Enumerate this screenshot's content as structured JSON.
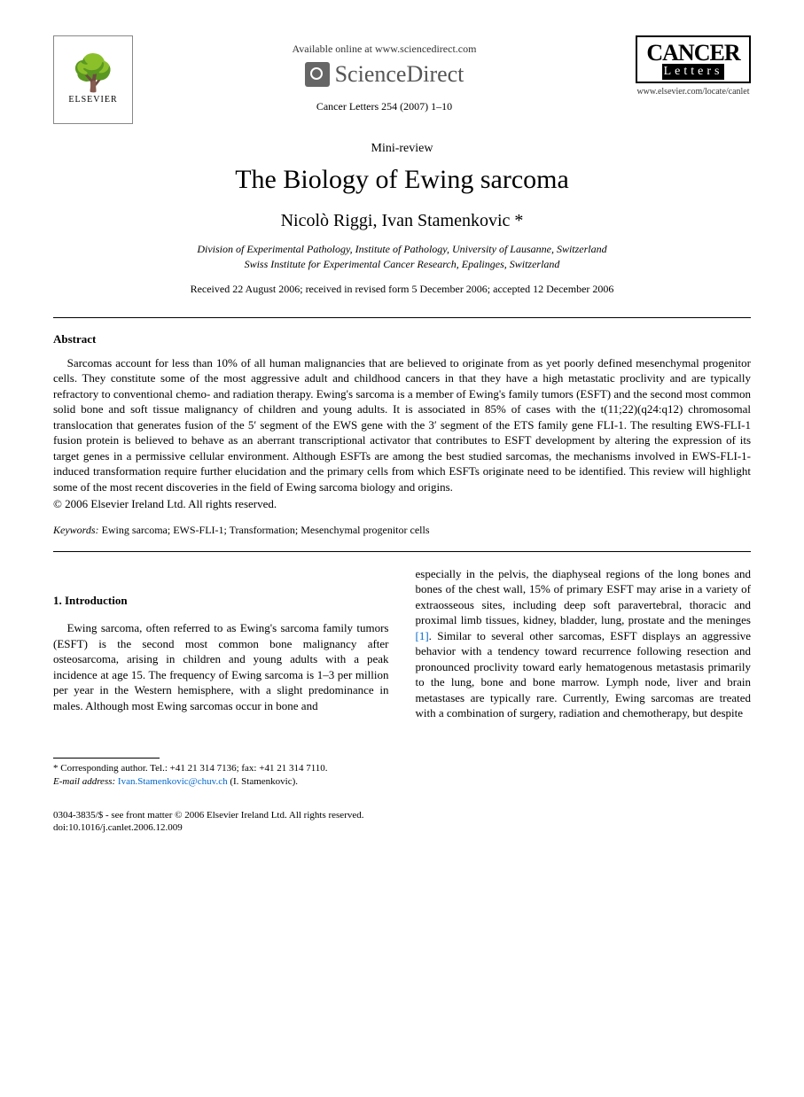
{
  "header": {
    "available_online": "Available online at www.sciencedirect.com",
    "sciencedirect": "ScienceDirect",
    "citation": "Cancer Letters 254 (2007) 1–10",
    "journal_logo_top": "CANCER",
    "journal_logo_bottom": "Letters",
    "journal_url": "www.elsevier.com/locate/canlet",
    "elsevier": "ELSEVIER"
  },
  "article": {
    "type": "Mini-review",
    "title": "The Biology of Ewing sarcoma",
    "authors": "Nicolò Riggi, Ivan Stamenkovic *",
    "affiliation1": "Division of Experimental Pathology, Institute of Pathology, University of Lausanne, Switzerland",
    "affiliation2": "Swiss Institute for Experimental Cancer Research, Epalinges, Switzerland",
    "dates": "Received 22 August 2006; received in revised form 5 December 2006; accepted 12 December 2006"
  },
  "abstract": {
    "heading": "Abstract",
    "body": "Sarcomas account for less than 10% of all human malignancies that are believed to originate from as yet poorly defined mesenchymal progenitor cells. They constitute some of the most aggressive adult and childhood cancers in that they have a high metastatic proclivity and are typically refractory to conventional chemo- and radiation therapy. Ewing's sarcoma is a member of Ewing's family tumors (ESFT) and the second most common solid bone and soft tissue malignancy of children and young adults. It is associated in 85% of cases with the t(11;22)(q24:q12) chromosomal translocation that generates fusion of the 5′ segment of the EWS gene with the 3′ segment of the ETS family gene FLI-1. The resulting EWS-FLI-1 fusion protein is believed to behave as an aberrant transcriptional activator that contributes to ESFT development by altering the expression of its target genes in a permissive cellular environment. Although ESFTs are among the best studied sarcomas, the mechanisms involved in EWS-FLI-1-induced transformation require further elucidation and the primary cells from which ESFTs originate need to be identified. This review will highlight some of the most recent discoveries in the field of Ewing sarcoma biology and origins.",
    "copyright": "© 2006 Elsevier Ireland Ltd. All rights reserved."
  },
  "keywords": {
    "label": "Keywords:",
    "text": " Ewing sarcoma; EWS-FLI-1; Transformation; Mesenchymal progenitor cells"
  },
  "section1": {
    "heading": "1. Introduction",
    "col1": "Ewing sarcoma, often referred to as Ewing's sarcoma family tumors (ESFT) is the second most common bone malignancy after osteosarcoma, arising in children and young adults with a peak incidence at age 15. The frequency of Ewing sarcoma is 1–3 per million per year in the Western hemisphere, with a slight predominance in males. Although most Ewing sarcomas occur in bone and",
    "col2a": "especially in the pelvis, the diaphyseal regions of the long bones and bones of the chest wall, 15% of primary ESFT may arise in a variety of extraosseous sites, including deep soft paravertebral, thoracic and proximal limb tissues, kidney, bladder, lung, prostate and the meninges ",
    "ref1": "[1]",
    "col2b": ". Similar to several other sarcomas, ESFT displays an aggressive behavior with a tendency toward recurrence following resection and pronounced proclivity toward early hematogenous metastasis primarily to the lung, bone and bone marrow. Lymph node, liver and brain metastases are typically rare. Currently, Ewing sarcomas are treated with a combination of surgery, radiation and chemotherapy, but despite"
  },
  "footnote": {
    "corresponding": "* Corresponding author. Tel.: +41 21 314 7136; fax: +41 21 314 7110.",
    "email_label": "E-mail address: ",
    "email": "Ivan.Stamenkovic@chuv.ch",
    "email_suffix": " (I. Stamenkovic)."
  },
  "footer": {
    "line1": "0304-3835/$ - see front matter © 2006 Elsevier Ireland Ltd. All rights reserved.",
    "line2": "doi:10.1016/j.canlet.2006.12.009"
  }
}
